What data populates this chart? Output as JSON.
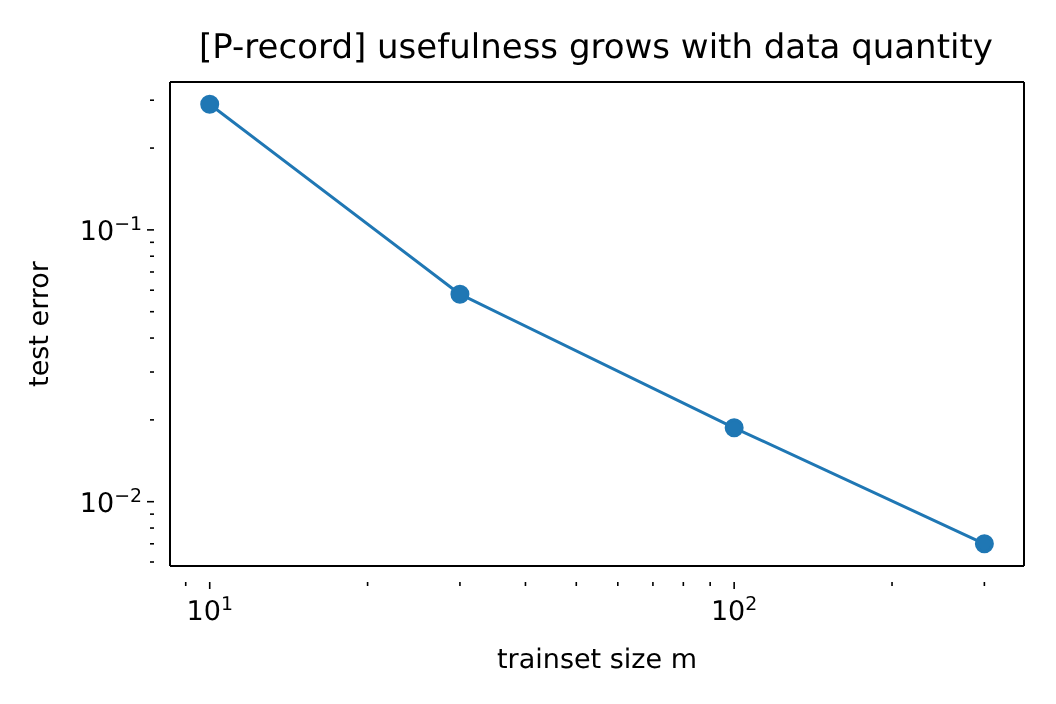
{
  "chart_data": {
    "type": "line",
    "title": "[P-record] usefulness grows with data quantity",
    "xlabel": "trainset size m",
    "ylabel": "test error",
    "log": "xy",
    "x": [
      10,
      30,
      100,
      300
    ],
    "series": [
      {
        "color": "#1f77b4",
        "values": [
          0.29,
          0.058,
          0.0187,
          0.007
        ]
      }
    ],
    "xlim": [
      8.4,
      357
    ],
    "ylim": [
      0.0058,
      0.35
    ],
    "xticks": [
      {
        "value": 9,
        "label": null
      },
      {
        "value": 10,
        "label": "10$^{1}$"
      },
      {
        "value": 20,
        "label": null
      },
      {
        "value": 30,
        "label": null
      },
      {
        "value": 40,
        "label": null
      },
      {
        "value": 50,
        "label": null
      },
      {
        "value": 60,
        "label": null
      },
      {
        "value": 70,
        "label": null
      },
      {
        "value": 80,
        "label": null
      },
      {
        "value": 90,
        "label": null
      },
      {
        "value": 100,
        "label": "10$^{2}$"
      },
      {
        "value": 200,
        "label": null
      },
      {
        "value": 300,
        "label": null
      }
    ],
    "yticks": [
      {
        "value": 0.006,
        "label": null
      },
      {
        "value": 0.007,
        "label": null
      },
      {
        "value": 0.008,
        "label": null
      },
      {
        "value": 0.009,
        "label": null
      },
      {
        "value": 0.01,
        "label": "10$^{−2}$"
      },
      {
        "value": 0.02,
        "label": null
      },
      {
        "value": 0.03,
        "label": null
      },
      {
        "value": 0.04,
        "label": null
      },
      {
        "value": 0.05,
        "label": null
      },
      {
        "value": 0.06,
        "label": null
      },
      {
        "value": 0.07,
        "label": null
      },
      {
        "value": 0.08,
        "label": null
      },
      {
        "value": 0.09,
        "label": null
      },
      {
        "value": 0.1,
        "label": "10$^{−1}$"
      },
      {
        "value": 0.2,
        "label": null
      },
      {
        "value": 0.3,
        "label": null
      }
    ],
    "marker": "circle",
    "line_style": "solid",
    "grid": false,
    "legend": false
  }
}
